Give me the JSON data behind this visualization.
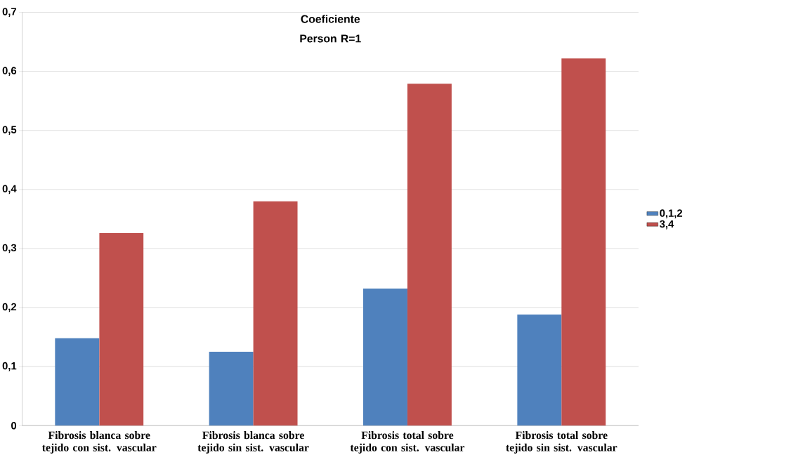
{
  "chart_data": {
    "type": "bar",
    "title": "Coeficiente Person R=1",
    "categories": [
      "Fibrosis blanca sobre tejido con sist. vascular",
      "Fibrosis blanca sobre tejido sin sist. vascular",
      "Fibrosis total sobre tejido con sist. vascular",
      "Fibrosis total sobre tejido sin sist. vascular"
    ],
    "series": [
      {
        "name": "0,1,2",
        "color": "#4f81bd",
        "values": [
          0.148,
          0.125,
          0.232,
          0.188
        ]
      },
      {
        "name": "3,4",
        "color": "#c0504d",
        "values": [
          0.326,
          0.38,
          0.579,
          0.622
        ]
      }
    ],
    "ylim": [
      0,
      0.7
    ],
    "yticks": [
      0,
      {
        "value": 0.1,
        "label": "0,1"
      },
      {
        "value": 0.2,
        "label": "0,2"
      },
      {
        "value": 0.3,
        "label": "0,3"
      },
      {
        "value": 0.4,
        "label": "0,4"
      },
      {
        "value": 0.5,
        "label": "0,5"
      },
      {
        "value": 0.6,
        "label": "0,6"
      },
      {
        "value": 0.7,
        "label": "0,7"
      }
    ],
    "grid": "y",
    "legend": "right"
  }
}
